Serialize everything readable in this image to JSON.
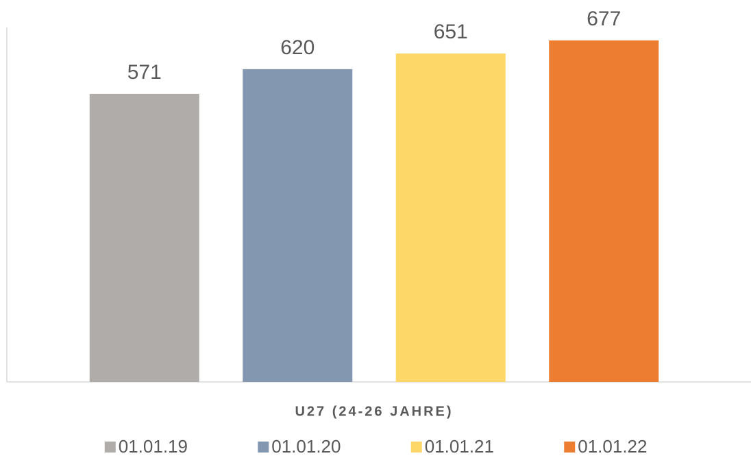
{
  "chart_data": {
    "type": "bar",
    "categories": [
      "U27 (24-26 JAHRE)"
    ],
    "series": [
      {
        "name": "01.01.19",
        "color": "#b0acaa",
        "values": [
          571
        ]
      },
      {
        "name": "01.01.20",
        "color": "#8497b0",
        "values": [
          620
        ]
      },
      {
        "name": "01.01.21",
        "color": "#fdd868",
        "values": [
          651
        ]
      },
      {
        "name": "01.01.22",
        "color": "#ed7d31",
        "values": [
          677
        ]
      }
    ],
    "ylim": [
      0,
      700
    ],
    "legend": "bottom"
  }
}
